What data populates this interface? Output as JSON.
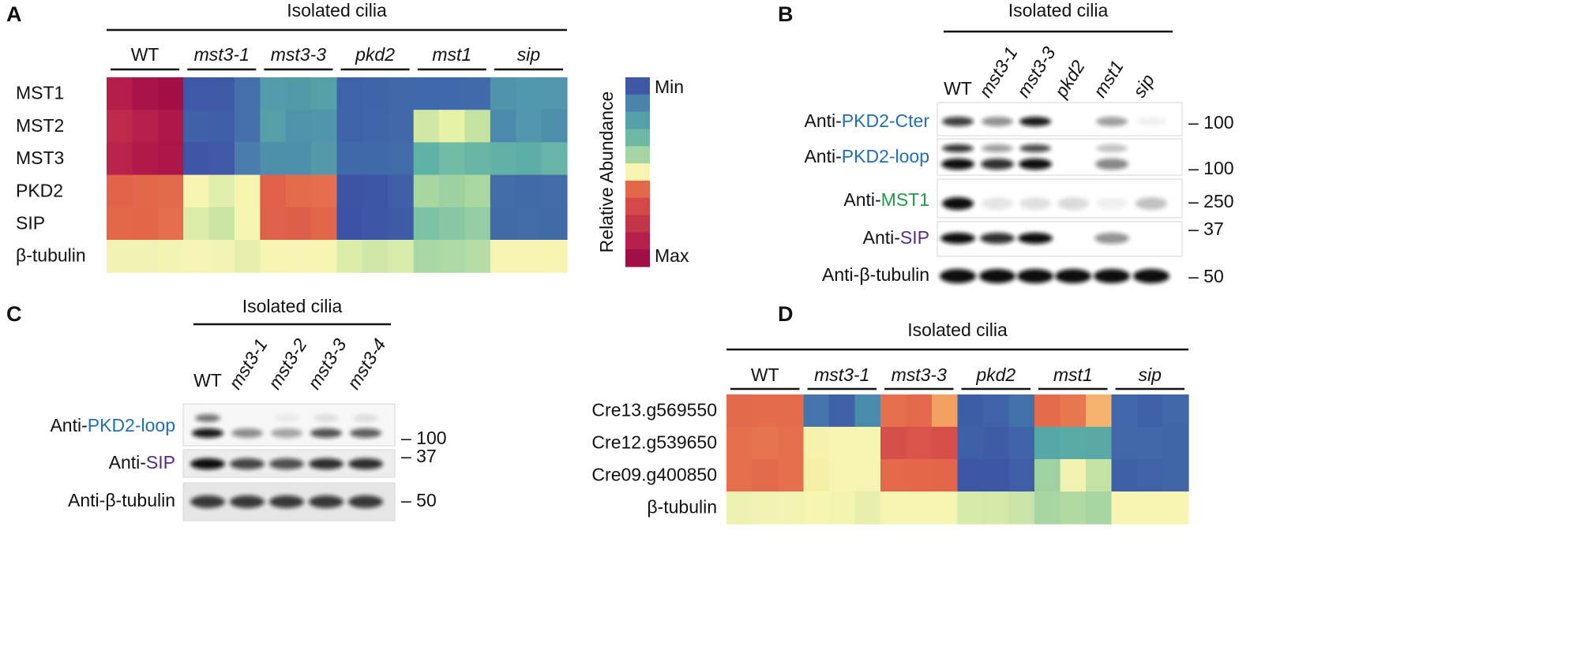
{
  "panels": {
    "a": {
      "label": "A",
      "title": "Isolated cilia",
      "groups": [
        {
          "name": "WT",
          "color": "#111111",
          "italic": false
        },
        {
          "name": "mst3-1",
          "color": "#f28a1e",
          "italic": true
        },
        {
          "name": "mst3-3",
          "color": "#f28a1e",
          "italic": true
        },
        {
          "name": "pkd2",
          "color": "#1f6fb4",
          "italic": true
        },
        {
          "name": "mst1",
          "color": "#1f9a4a",
          "italic": true
        },
        {
          "name": "sip",
          "color": "#5b2a86",
          "italic": true
        }
      ],
      "rows": [
        {
          "name": "MST1",
          "color": "#1f9a4a",
          "cells": [
            "#b51d4a",
            "#a8134a",
            "#a30f44",
            "#3f58a7",
            "#3e5aa7",
            "#456fab",
            "#539ca9",
            "#519ba9",
            "#55a0a7",
            "#3f63a8",
            "#3f64a8",
            "#4068a9",
            "#3f69aa",
            "#3f69aa",
            "#406aaa",
            "#4f94ab",
            "#5098ab",
            "#5196aa"
          ]
        },
        {
          "name": "MST2",
          "color": "#111111",
          "cells": [
            "#bd2a4c",
            "#b5204b",
            "#ae174a",
            "#4060a8",
            "#3f5ea8",
            "#4670ac",
            "#569fa9",
            "#4f93ab",
            "#5195aa",
            "#3f62a8",
            "#3f66a8",
            "#4169a9",
            "#d1e8a5",
            "#e6f2a8",
            "#c4e2a2",
            "#4c8aad",
            "#5196aa",
            "#4d8fab"
          ]
        },
        {
          "name": "MST3",
          "color": "#f28a1e",
          "cells": [
            "#b8234b",
            "#b01a4a",
            "#ab1548",
            "#3f56a6",
            "#3f58a7",
            "#4a7cae",
            "#4e8fab",
            "#4e8fac",
            "#5499aa",
            "#4069a9",
            "#4069a9",
            "#416ba9",
            "#5eb2a6",
            "#72bba5",
            "#67b6a6",
            "#62b1a6",
            "#5eaea8",
            "#68b4a6"
          ]
        },
        {
          "name": "PKD2",
          "color": "#1f6fb4",
          "cells": [
            "#e1644a",
            "#e3674b",
            "#e26a4c",
            "#f6f4b0",
            "#e2efaa",
            "#f6f4af",
            "#e0604a",
            "#e46c4c",
            "#e66e4e",
            "#3d54a5",
            "#3d55a5",
            "#3f5ea7",
            "#a7d6a1",
            "#9dd1a2",
            "#a8d7a1",
            "#426daa",
            "#416aa9",
            "#416ba9"
          ]
        },
        {
          "name": "SIP",
          "color": "#5b2a86",
          "cells": [
            "#e3684b",
            "#e3664b",
            "#e56c4c",
            "#dcedaa",
            "#c9e4a3",
            "#f7f5b2",
            "#e0614a",
            "#de5f49",
            "#e26649",
            "#3c52a4",
            "#3d56a5",
            "#3e5ca6",
            "#7cc2a4",
            "#89c7a4",
            "#94cca3",
            "#416aa9",
            "#426ba9",
            "#416aa9"
          ]
        },
        {
          "name": "β-tubulin",
          "color": "#111111",
          "cells": [
            "#f2f2b2",
            "#f1f2b3",
            "#f3f3b2",
            "#f5f4b3",
            "#f3f3b2",
            "#e6eeac",
            "#f6f4b0",
            "#f6f5b4",
            "#f7f5b2",
            "#dcedaa",
            "#cfe8a9",
            "#d7ebaa",
            "#a9d7a3",
            "#add9a3",
            "#b6dda5",
            "#f6f4b1",
            "#f6f4b1",
            "#f7f5b1"
          ]
        }
      ],
      "colorbar": {
        "axis_label": "Relative Abundance",
        "min_label": "Min",
        "max_label": "Max",
        "colors": [
          "#3f58a6",
          "#4a84ad",
          "#54a0a8",
          "#6cb8a5",
          "#a4d5a3",
          "#f6f4b0",
          "#e3674a",
          "#d4484a",
          "#c33549",
          "#b51f4a",
          "#a00f45"
        ]
      }
    },
    "b": {
      "label": "B",
      "title": "Isolated cilia",
      "lanes": [
        {
          "name": "WT",
          "color": "#111111",
          "italic": false
        },
        {
          "name": "mst3-1",
          "color": "#f28a1e",
          "italic": true
        },
        {
          "name": "mst3-3",
          "color": "#f28a1e",
          "italic": true
        },
        {
          "name": "pkd2",
          "color": "#1f6fb4",
          "italic": true
        },
        {
          "name": "mst1",
          "color": "#1f9a4a",
          "italic": true
        },
        {
          "name": "sip",
          "color": "#5b2a86",
          "italic": true
        }
      ],
      "rows": [
        {
          "prefix": "Anti-",
          "target": "PKD2-Cter",
          "target_color": "#1f6fb4",
          "marker": "– 100"
        },
        {
          "prefix": "Anti-",
          "target": "PKD2-loop",
          "target_color": "#1f6fb4",
          "marker": "– 100"
        },
        {
          "prefix": "Anti-",
          "target": "MST1",
          "target_color": "#1f9a4a",
          "marker": "– 250"
        },
        {
          "prefix": "Anti-",
          "target": "SIP",
          "target_color": "#5b2a86",
          "marker": "– 37"
        },
        {
          "prefix": "Anti-",
          "target": "β-tubulin",
          "target_color": "#111111",
          "marker": "– 50"
        }
      ]
    },
    "c": {
      "label": "C",
      "title": "Isolated cilia",
      "lanes": [
        {
          "name": "WT",
          "color": "#111111",
          "italic": false
        },
        {
          "name": "mst3-1",
          "color": "#f28a1e",
          "italic": true
        },
        {
          "name": "mst3-2",
          "color": "#f28a1e",
          "italic": true
        },
        {
          "name": "mst3-3",
          "color": "#f28a1e",
          "italic": true
        },
        {
          "name": "mst3-4",
          "color": "#f28a1e",
          "italic": true
        }
      ],
      "rows": [
        {
          "prefix": "Anti-",
          "target": "PKD2-loop",
          "target_color": "#1f6fb4",
          "marker": "– 100"
        },
        {
          "prefix": "Anti-",
          "target": "SIP",
          "target_color": "#5b2a86",
          "marker": "– 37"
        },
        {
          "prefix": "Anti-",
          "target": "β-tubulin",
          "target_color": "#111111",
          "marker": "– 50"
        }
      ]
    },
    "d": {
      "label": "D",
      "title": "Isolated cilia",
      "groups": [
        {
          "name": "WT",
          "color": "#111111",
          "italic": false
        },
        {
          "name": "mst3-1",
          "color": "#f28a1e",
          "italic": true
        },
        {
          "name": "mst3-3",
          "color": "#f28a1e",
          "italic": true
        },
        {
          "name": "pkd2",
          "color": "#1f6fb4",
          "italic": true
        },
        {
          "name": "mst1",
          "color": "#1f9a4a",
          "italic": true
        },
        {
          "name": "sip",
          "color": "#5b2a86",
          "italic": true
        }
      ],
      "rows": [
        {
          "name": "Cre13.g569550",
          "color": "#111111",
          "cells": [
            "#e2694b",
            "#e46c4c",
            "#e46c4d",
            "#4674ab",
            "#3f62a7",
            "#4a8aad",
            "#e6704e",
            "#e4694c",
            "#f1a060",
            "#3e5da7",
            "#3f62a8",
            "#4271aa",
            "#e46b4c",
            "#e5784f",
            "#f6b36e",
            "#4067a9",
            "#3f61a8",
            "#4068a9"
          ]
        },
        {
          "name": "Cre12.g539650",
          "color": "#111111",
          "cells": [
            "#e5704d",
            "#e6744e",
            "#e4704d",
            "#f6f1ac",
            "#f7f5b2",
            "#f7f5b2",
            "#d5504a",
            "#d9544a",
            "#d84f49",
            "#3f5fa7",
            "#3e5ba6",
            "#4064a8",
            "#58a7a7",
            "#5aaaa7",
            "#5aa9a7",
            "#4167a9",
            "#4169a9",
            "#4066a8"
          ]
        },
        {
          "name": "Cre09.g400850",
          "color": "#111111",
          "cells": [
            "#e66f4d",
            "#e36a4c",
            "#e66f4e",
            "#f6efa8",
            "#f6f4b0",
            "#f6f4b0",
            "#e4684b",
            "#e4674b",
            "#e3664a",
            "#3d56a5",
            "#3d56a5",
            "#3f5ea7",
            "#9fd2a2",
            "#f1f2b0",
            "#c4e2a4",
            "#3e60a7",
            "#4062a8",
            "#4066a8"
          ]
        },
        {
          "name": "β-tubulin",
          "color": "#111111",
          "cells": [
            "#edf1b2",
            "#f2f3b2",
            "#f3f3b2",
            "#f7f5b2",
            "#f4f4b1",
            "#e7efad",
            "#f6f4b0",
            "#f6f4b0",
            "#f6f4b1",
            "#d6eaaa",
            "#d4e9a8",
            "#c9e4a6",
            "#a8d6a2",
            "#b1daa3",
            "#a7d6a3",
            "#f7f5b1",
            "#f7f5b1",
            "#f7f5b1"
          ]
        }
      ]
    }
  }
}
